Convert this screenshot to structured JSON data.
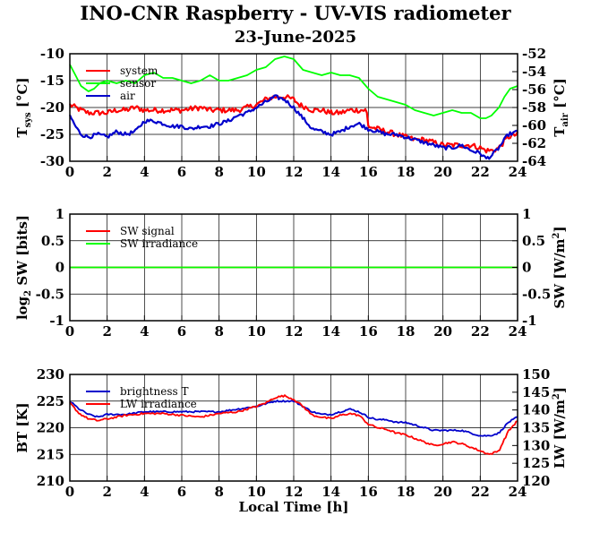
{
  "title": "INO-CNR Raspberry - UV-VIS radiometer",
  "subtitle": "23-June-2025",
  "colors": {
    "red": "#ff0000",
    "green": "#00ff00",
    "blue": "#0000cc",
    "grid": "#000000"
  },
  "chart_data": [
    {
      "type": "line",
      "id": "temperature",
      "xlim": [
        0,
        24
      ],
      "xticks": [
        "0",
        "2",
        "4",
        "6",
        "8",
        "10",
        "12",
        "14",
        "16",
        "18",
        "20",
        "22",
        "24"
      ],
      "ylim": [
        -30,
        -10
      ],
      "yticks": [
        "-30",
        "-25",
        "-20",
        "-15",
        "-10"
      ],
      "ylabel_main": "T",
      "ylabel_sub": "sys",
      "ylabel_unit": " [°C]",
      "y2lim": [
        -64,
        -52
      ],
      "y2ticks": [
        "-64",
        "-62",
        "-60",
        "-58",
        "-56",
        "-54",
        "-52"
      ],
      "y2label_main": "T",
      "y2label_sub": "air",
      "y2label_unit": " [°C]",
      "grid": true,
      "legend": "top-left",
      "series": [
        {
          "name": "system",
          "color": "red",
          "axis": "left",
          "noise": 0.5,
          "x": [
            0,
            0.3,
            0.6,
            1,
            1.5,
            2,
            2.5,
            3,
            3.5,
            4,
            5,
            6,
            7,
            7.5,
            8,
            9,
            9.5,
            10,
            10.5,
            11,
            11.5,
            12,
            12.3,
            12.7,
            13,
            13.5,
            14,
            14.5,
            15,
            15.5,
            15.9,
            16,
            16.5,
            17,
            17.5,
            18,
            18.5,
            19,
            19.5,
            20,
            20.5,
            21,
            21.5,
            22,
            22.3,
            22.7,
            23,
            23.5,
            24
          ],
          "y": [
            -19.5,
            -20,
            -20.5,
            -21,
            -21,
            -21,
            -20.5,
            -20.5,
            -20,
            -20.5,
            -20.5,
            -20.5,
            -20,
            -20.5,
            -20.5,
            -20.5,
            -20,
            -19.5,
            -18.5,
            -18,
            -18,
            -18.5,
            -19.5,
            -20,
            -20.5,
            -20.5,
            -21,
            -21,
            -20.5,
            -20.5,
            -20.5,
            -23.5,
            -24,
            -24.5,
            -25,
            -25.5,
            -26,
            -26,
            -26.5,
            -27,
            -27,
            -27,
            -27,
            -27.5,
            -28,
            -28,
            -27.5,
            -25.5,
            -25
          ]
        },
        {
          "name": "sensor",
          "color": "green",
          "axis": "left",
          "noise": 0,
          "x": [
            0,
            0.3,
            0.6,
            1,
            1.3,
            1.6,
            2,
            2.5,
            3,
            3.5,
            4,
            4.5,
            5,
            5.5,
            6,
            6.5,
            7,
            7.5,
            8,
            8.5,
            9,
            9.5,
            10,
            10.5,
            11,
            11.5,
            12,
            12.5,
            13,
            13.5,
            14,
            14.5,
            15,
            15.5,
            16,
            16.5,
            17,
            17.5,
            18,
            18.5,
            19,
            19.5,
            20,
            20.5,
            21,
            21.5,
            22,
            22.3,
            22.6,
            23,
            23.3,
            23.6,
            24
          ],
          "y": [
            -12,
            -14,
            -16,
            -17,
            -16.5,
            -15.5,
            -15,
            -15.5,
            -15,
            -15.5,
            -14,
            -13.5,
            -14.5,
            -14.5,
            -15,
            -15.5,
            -15,
            -14,
            -15,
            -15,
            -14.5,
            -14,
            -13,
            -12.5,
            -11,
            -10.5,
            -11,
            -13,
            -13.5,
            -14,
            -13.5,
            -14,
            -14,
            -14.5,
            -16.5,
            -18,
            -18.5,
            -19,
            -19.5,
            -20.5,
            -21,
            -21.5,
            -21,
            -20.5,
            -21,
            -21,
            -22,
            -22,
            -21.5,
            -20,
            -18,
            -16.5,
            -16
          ]
        },
        {
          "name": "air",
          "color": "blue",
          "axis": "left",
          "noise": 0.35,
          "x": [
            0,
            0.3,
            0.6,
            1,
            1.5,
            2,
            2.5,
            3,
            3.5,
            4,
            4.5,
            5,
            5.5,
            6,
            6.5,
            7,
            7.5,
            8,
            8.5,
            9,
            9.5,
            10,
            10.5,
            11,
            11.5,
            12,
            12.5,
            13,
            13.5,
            14,
            14.5,
            15,
            15.5,
            16,
            16.5,
            17,
            17.5,
            18,
            18.5,
            19,
            19.5,
            20,
            20.5,
            21,
            21.5,
            22,
            22.3,
            22.6,
            23,
            23.5,
            24
          ],
          "y": [
            -21.5,
            -23.5,
            -25,
            -25.5,
            -25,
            -25.5,
            -24.5,
            -25,
            -24.5,
            -22.5,
            -22.5,
            -23,
            -23.5,
            -23.5,
            -24,
            -23.5,
            -23.5,
            -23,
            -22.5,
            -21.5,
            -21,
            -20,
            -19,
            -18,
            -18.5,
            -20,
            -22,
            -24,
            -24.5,
            -25,
            -24.5,
            -23.5,
            -23,
            -24,
            -24.5,
            -25,
            -25,
            -25.5,
            -26,
            -26.5,
            -27,
            -27.5,
            -27.5,
            -27,
            -28,
            -28.5,
            -29.5,
            -29,
            -27.5,
            -25,
            -24.5
          ]
        }
      ]
    },
    {
      "type": "line",
      "id": "shortwave",
      "xlim": [
        0,
        24
      ],
      "xticks": [
        "0",
        "2",
        "4",
        "6",
        "8",
        "10",
        "12",
        "14",
        "16",
        "18",
        "20",
        "22",
        "24"
      ],
      "ylim": [
        -1,
        1
      ],
      "yticks": [
        "-1",
        "-0.5",
        "0",
        "0.5",
        "1"
      ],
      "ylabel_main": "log",
      "ylabel_sub": "2",
      "ylabel_unit": " SW [bits]",
      "y2lim": [
        -1,
        1
      ],
      "y2ticks": [
        "-1",
        "-0.5",
        "0",
        "0.5",
        "1"
      ],
      "y2label_main": "SW [W/m",
      "y2label_sup": "2",
      "y2label_unit": "]",
      "grid": true,
      "legend": "top-left",
      "series": [
        {
          "name": "SW signal",
          "color": "red",
          "axis": "left",
          "noise": 0,
          "x": [
            0,
            24
          ],
          "y": [
            0,
            0
          ]
        },
        {
          "name": "SW irradiance",
          "color": "green",
          "axis": "left",
          "noise": 0,
          "x": [
            0,
            24
          ],
          "y": [
            0,
            0
          ]
        }
      ]
    },
    {
      "type": "line",
      "id": "longwave",
      "xlim": [
        0,
        24
      ],
      "xticks": [
        "0",
        "2",
        "4",
        "6",
        "8",
        "10",
        "12",
        "14",
        "16",
        "18",
        "20",
        "22",
        "24"
      ],
      "ylim": [
        210,
        230
      ],
      "yticks": [
        "210",
        "215",
        "220",
        "225",
        "230"
      ],
      "ylabel_main": "BT [K]",
      "y2lim": [
        120,
        150
      ],
      "y2ticks": [
        "120",
        "125",
        "130",
        "135",
        "140",
        "145",
        "150"
      ],
      "y2label_main": "LW [W/m",
      "y2label_sup": "2",
      "y2label_unit": "]",
      "xlabel": "Local Time [h]",
      "grid": true,
      "legend": "top-left",
      "series": [
        {
          "name": "brightness T",
          "color": "blue",
          "axis": "left",
          "noise": 0.15,
          "x": [
            0,
            0.5,
            1,
            1.5,
            2,
            3,
            4,
            5,
            6,
            7,
            8,
            9,
            10,
            10.5,
            11,
            11.5,
            12,
            12.5,
            13,
            13.5,
            14,
            14.5,
            15,
            15.5,
            16,
            16.5,
            17,
            17.5,
            18,
            18.5,
            19,
            19.5,
            20,
            20.5,
            21,
            21.5,
            22,
            22.5,
            23,
            23.5,
            24
          ],
          "y": [
            225,
            223.5,
            222.5,
            222,
            222.5,
            222.5,
            223,
            223,
            223,
            223,
            223,
            223.5,
            224,
            224.5,
            225,
            225,
            225,
            224,
            223,
            222.5,
            222.5,
            223,
            223.5,
            223,
            222,
            221.5,
            221.5,
            221,
            221,
            220.5,
            220,
            219.5,
            219.5,
            219.5,
            219.5,
            219,
            218.5,
            218.5,
            219,
            221,
            222
          ]
        },
        {
          "name": "LW irradiance",
          "color": "red",
          "axis": "right",
          "noise": 0.25,
          "x": [
            0,
            0.5,
            1,
            1.5,
            2,
            3,
            4,
            5,
            6,
            7,
            8,
            9,
            10,
            10.5,
            11,
            11.5,
            12,
            12.5,
            13,
            13.5,
            14,
            14.5,
            15,
            15.5,
            16,
            16.5,
            17,
            17.5,
            18,
            18.5,
            19,
            19.5,
            20,
            20.5,
            21,
            21.5,
            22,
            22.5,
            23,
            23.5,
            24
          ],
          "y": [
            142,
            139,
            137.5,
            137,
            137.5,
            138.5,
            139,
            139,
            138.5,
            138,
            139,
            139.5,
            141,
            142,
            143.5,
            144,
            143,
            141,
            138.5,
            138,
            137.5,
            138.5,
            139,
            138.5,
            136,
            135,
            134.5,
            133.5,
            133,
            132,
            131,
            130,
            130.5,
            131,
            130.5,
            129.5,
            128.5,
            127.5,
            128.5,
            134,
            137
          ]
        }
      ]
    }
  ]
}
